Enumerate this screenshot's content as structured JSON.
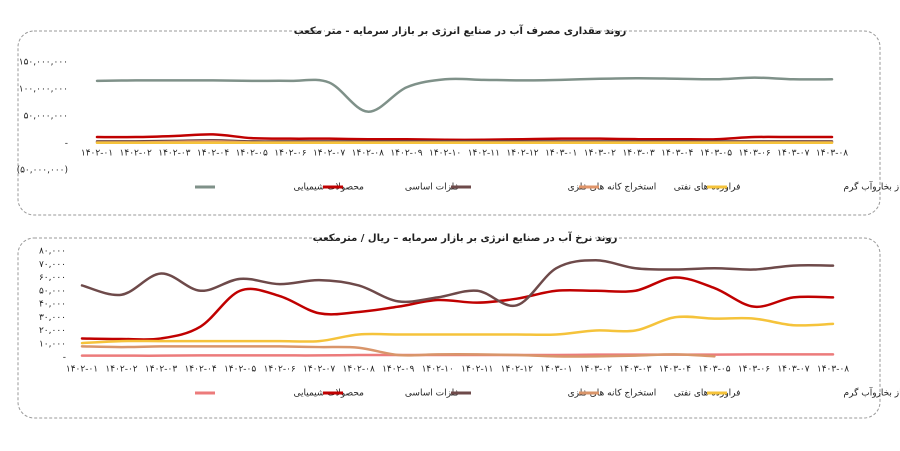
{
  "chart_data": [
    {
      "type": "line",
      "title": "روند مقداری مصرف آب در صنایع انرژی بر بازار سرمایه - متر مکعب",
      "categories": [
        "۱۴۰۲-۰۱",
        "۱۴۰۲-۰۲",
        "۱۴۰۲-۰۳",
        "۱۴۰۲-۰۴",
        "۱۴۰۲-۰۵",
        "۱۴۰۲-۰۶",
        "۱۴۰۲-۰۷",
        "۱۴۰۲-۰۸",
        "۱۴۰۲-۰۹",
        "۱۴۰۲-۱۰",
        "۱۴۰۲-۱۱",
        "۱۴۰۲-۱۲",
        "۱۴۰۳-۰۱",
        "۱۴۰۳-۰۲",
        "۱۴۰۳-۰۳",
        "۱۴۰۳-۰۴",
        "۱۴۰۳-۰۵",
        "۱۴۰۳-۰۶",
        "۱۴۰۳-۰۷",
        "۱۴۰۳-۰۸"
      ],
      "ylim": [
        -50000000,
        150000000
      ],
      "yticks": [
        {
          "value": 150000000,
          "label": "۱۵۰,۰۰۰,۰۰۰"
        },
        {
          "value": 100000000,
          "label": "۱۰۰,۰۰۰,۰۰۰"
        },
        {
          "value": 50000000,
          "label": "۵۰,۰۰۰,۰۰۰"
        },
        {
          "value": 0,
          "label": "-"
        },
        {
          "value": -50000000,
          "label": "(۵۰,۰۰۰,۰۰۰)"
        }
      ],
      "series": [
        {
          "name": "محصولات شیمیایی",
          "color": "#7f9189",
          "values": [
            115000000,
            116000000,
            116000000,
            116000000,
            115000000,
            115000000,
            112000000,
            58000000,
            103000000,
            118000000,
            117000000,
            116000000,
            117000000,
            119000000,
            120000000,
            119000000,
            118000000,
            121000000,
            118000000,
            118000000
          ]
        },
        {
          "name": "فلزات اساسی",
          "color": "#c00000",
          "values": [
            11000000,
            11000000,
            13000000,
            16000000,
            9000000,
            8000000,
            8000000,
            7000000,
            7000000,
            6000000,
            6000000,
            7000000,
            8000000,
            8000000,
            7000000,
            7000000,
            7000000,
            11000000,
            11000000,
            11000000
          ]
        },
        {
          "name": "استخراج کانه های فلزی",
          "color": "#6e4a4a",
          "values": [
            3000000,
            3000000,
            4000000,
            5000000,
            3000000,
            3000000,
            3000000,
            3000000,
            3000000,
            3000000,
            3000000,
            3000000,
            3000000,
            3000000,
            3000000,
            3000000,
            3000000,
            3000000,
            3000000,
            3000000
          ]
        },
        {
          "name": "فراورده های نفتی",
          "color": "#e0956a",
          "values": [
            1000000,
            1000000,
            2000000,
            3000000,
            1000000,
            1000000,
            1000000,
            1000000,
            1000000,
            1000000,
            1000000,
            1000000,
            1000000,
            1000000,
            1000000,
            1000000,
            1000000,
            1000000,
            1000000,
            1000000
          ]
        },
        {
          "name": "عرضه برق، گاز بخاروآب گرم",
          "color": "#f5c33b",
          "values": [
            500000,
            500000,
            500000,
            500000,
            500000,
            500000,
            500000,
            500000,
            500000,
            500000,
            500000,
            500000,
            500000,
            500000,
            500000,
            500000,
            500000,
            500000,
            500000,
            500000
          ]
        }
      ]
    },
    {
      "type": "line",
      "title": "روند نرخ آب در صنایع انرژی بر بازار سرمایه – ریال / مترمکعب",
      "categories": [
        "۱۴۰۲-۰۱",
        "۱۴۰۲-۰۲",
        "۱۴۰۲-۰۳",
        "۱۴۰۲-۰۴",
        "۱۴۰۲-۰۵",
        "۱۴۰۲-۰۶",
        "۱۴۰۲-۰۷",
        "۱۴۰۲-۰۸",
        "۱۴۰۲-۰۹",
        "۱۴۰۲-۱۰",
        "۱۴۰۲-۱۱",
        "۱۴۰۲-۱۲",
        "۱۴۰۳-۰۱",
        "۱۴۰۳-۰۲",
        "۱۴۰۳-۰۳",
        "۱۴۰۳-۰۴",
        "۱۴۰۳-۰۵",
        "۱۴۰۳-۰۶",
        "۱۴۰۳-۰۷",
        "۱۴۰۳-۰۸"
      ],
      "ylim": [
        0,
        80000
      ],
      "yticks": [
        {
          "value": 80000,
          "label": "۸۰,۰۰۰"
        },
        {
          "value": 70000,
          "label": "۷۰,۰۰۰"
        },
        {
          "value": 60000,
          "label": "۶۰,۰۰۰"
        },
        {
          "value": 50000,
          "label": "۵۰,۰۰۰"
        },
        {
          "value": 40000,
          "label": "۴۰,۰۰۰"
        },
        {
          "value": 30000,
          "label": "۳۰,۰۰۰"
        },
        {
          "value": 20000,
          "label": "۲۰,۰۰۰"
        },
        {
          "value": 10000,
          "label": "۱۰,۰۰۰"
        },
        {
          "value": 0,
          "label": "-"
        }
      ],
      "series": [
        {
          "name": "محصولات شیمیایی",
          "color": "#ec7b7b",
          "values": [
            1000,
            1000,
            1000,
            1200,
            1200,
            1200,
            1200,
            1500,
            1500,
            1500,
            1500,
            1500,
            1500,
            1800,
            1800,
            1800,
            1800,
            2000,
            2000,
            2000
          ]
        },
        {
          "name": "فلزات اساسی",
          "color": "#c00000",
          "values": [
            14000,
            13600,
            14000,
            23000,
            50000,
            46000,
            33000,
            34000,
            38000,
            43000,
            41000,
            44000,
            50000,
            50000,
            50000,
            60000,
            52000,
            38000,
            45000,
            45000
          ]
        },
        {
          "name": "استخراج کانه های فلزی",
          "color": "#6e4a4a",
          "values": [
            54000,
            47000,
            63000,
            50000,
            59000,
            55000,
            58000,
            54000,
            42000,
            45000,
            50000,
            39000,
            67000,
            73000,
            67000,
            66000,
            67000,
            66000,
            69000,
            69000
          ]
        },
        {
          "name": "فراورده های نفتی",
          "color": "#d9956a",
          "values": [
            8000,
            7500,
            8000,
            8000,
            8000,
            8000,
            7500,
            7000,
            1500,
            2000,
            2000,
            1500,
            500,
            500,
            1000,
            2000,
            500,
            null,
            null,
            null
          ]
        },
        {
          "name": "عرضه برق، گاز بخاروآب گرم",
          "color": "#f5c33b",
          "values": [
            10500,
            12000,
            12000,
            12000,
            12000,
            12000,
            12000,
            17000,
            17000,
            17000,
            17000,
            17000,
            17000,
            20000,
            20000,
            30000,
            29000,
            29000,
            24000,
            25000
          ]
        }
      ]
    }
  ]
}
